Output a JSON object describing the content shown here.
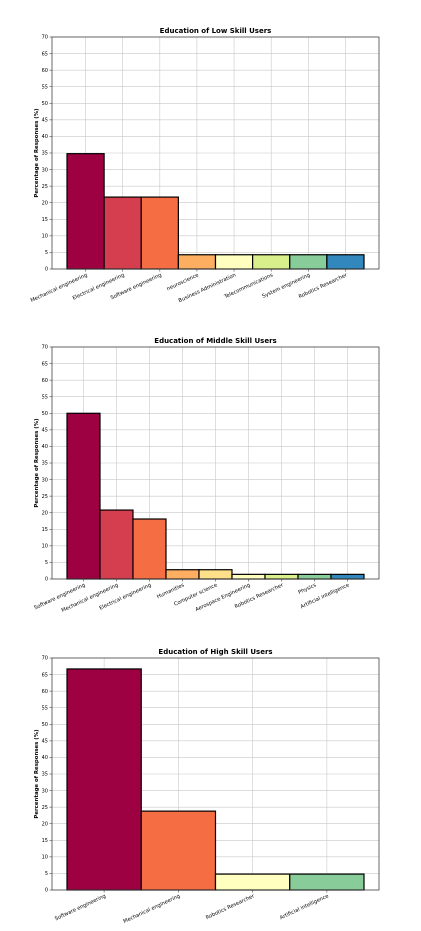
{
  "chart_data": [
    {
      "type": "bar",
      "title": "Education of Low Skill Users",
      "xlabel": "",
      "ylabel": "Percentage of Responses (%)",
      "ylim": [
        0,
        70
      ],
      "yticks": [
        0,
        5,
        10,
        15,
        20,
        25,
        30,
        35,
        40,
        45,
        50,
        55,
        60,
        65,
        70
      ],
      "grid": true,
      "categories": [
        "Mechanical engineering",
        "Electrical engineering",
        "Software engineering",
        "neuroscience",
        "Business Administration",
        "Telecommunications",
        "System engineering",
        "Robotics Researcher"
      ],
      "values": [
        34.8,
        21.7,
        21.7,
        4.3,
        4.3,
        4.3,
        4.3,
        4.3
      ],
      "colors": [
        "#9e0142",
        "#d53e4f",
        "#f46d43",
        "#fdae61",
        "#ffffbf",
        "#d9ef8b",
        "#88cc99",
        "#3288bd"
      ]
    },
    {
      "type": "bar",
      "title": "Education of Middle Skill Users",
      "xlabel": "",
      "ylabel": "Percentage of Responses (%)",
      "ylim": [
        0,
        70
      ],
      "yticks": [
        0,
        5,
        10,
        15,
        20,
        25,
        30,
        35,
        40,
        45,
        50,
        55,
        60,
        65,
        70
      ],
      "grid": true,
      "categories": [
        "Software engineering",
        "Mechanical engineering",
        "Electrical engineering",
        "Humanities",
        "Computer science",
        "Aerospace Engineering",
        "Robotics Researcher",
        "Physics",
        "Artificial intelligence"
      ],
      "values": [
        50.0,
        20.8,
        18.1,
        2.8,
        2.8,
        1.4,
        1.4,
        1.4,
        1.4
      ],
      "colors": [
        "#9e0142",
        "#d53e4f",
        "#f46d43",
        "#fdae61",
        "#fee08b",
        "#ffffbf",
        "#d9ef8b",
        "#88cc99",
        "#3288bd"
      ]
    },
    {
      "type": "bar",
      "title": "Education of High Skill Users",
      "xlabel": "",
      "ylabel": "Percentage of Responses (%)",
      "ylim": [
        0,
        70
      ],
      "yticks": [
        0,
        5,
        10,
        15,
        20,
        25,
        30,
        35,
        40,
        45,
        50,
        55,
        60,
        65,
        70
      ],
      "grid": true,
      "categories": [
        "Software engineering",
        "Mechanical engineering",
        "Robotics Researcher",
        "Artificial intelligence"
      ],
      "values": [
        66.7,
        23.8,
        4.8,
        4.8
      ],
      "colors": [
        "#9e0142",
        "#f46d43",
        "#ffffbf",
        "#88cc99"
      ]
    }
  ]
}
